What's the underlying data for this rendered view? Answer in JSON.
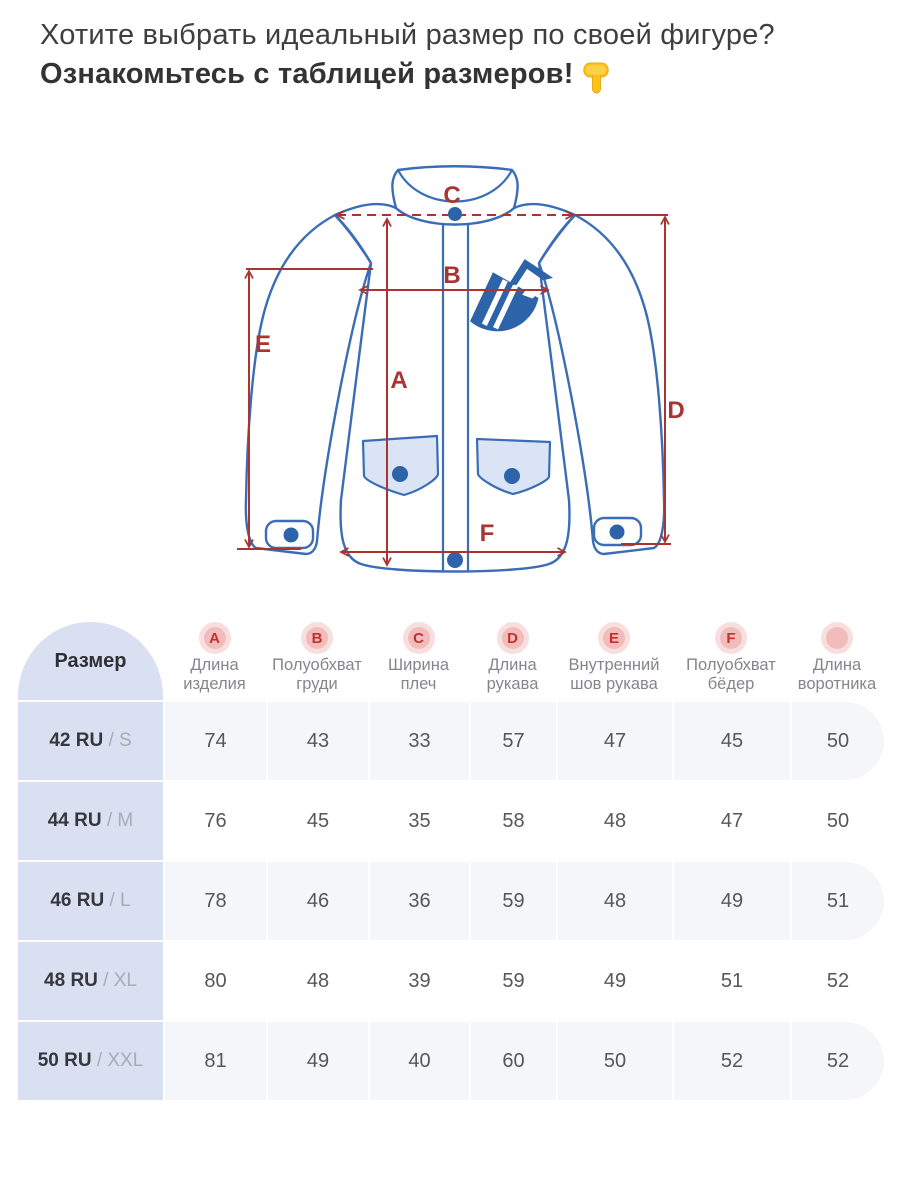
{
  "header": {
    "line1": "Хотите выбрать идеальный размер по своей фигуре?",
    "line2": "Ознакомьтесь с таблицей размеров!",
    "pointer_icon": "pointing-down-hand"
  },
  "diagram": {
    "description": "jacket measurement scheme",
    "marks": {
      "A": "A",
      "B": "B",
      "C": "C",
      "D": "D",
      "E": "E",
      "F": "F"
    }
  },
  "table": {
    "size_header": "Размер",
    "columns": [
      {
        "letter": "A",
        "label": "Длина изделия"
      },
      {
        "letter": "B",
        "label": "Полуобхват груди"
      },
      {
        "letter": "C",
        "label": "Ширина плеч"
      },
      {
        "letter": "D",
        "label": "Длина рукава"
      },
      {
        "letter": "E",
        "label": "Внутренний шов рукава"
      },
      {
        "letter": "F",
        "label": "Полуобхват бёдер"
      },
      {
        "letter": "",
        "label": "Длина воротника"
      }
    ],
    "rows": [
      {
        "size_ru": "42 RU",
        "size_int": "S",
        "values": [
          74,
          43,
          33,
          57,
          47,
          45,
          50
        ]
      },
      {
        "size_ru": "44 RU",
        "size_int": "M",
        "values": [
          76,
          45,
          35,
          58,
          48,
          47,
          50
        ]
      },
      {
        "size_ru": "46 RU",
        "size_int": "L",
        "values": [
          78,
          46,
          36,
          59,
          48,
          49,
          51
        ]
      },
      {
        "size_ru": "48 RU",
        "size_int": "XL",
        "values": [
          80,
          48,
          39,
          59,
          49,
          51,
          52
        ]
      },
      {
        "size_ru": "50 RU",
        "size_int": "XXL",
        "values": [
          81,
          49,
          40,
          60,
          50,
          52,
          52
        ]
      }
    ]
  },
  "colors": {
    "measurement_red": "#a93431",
    "jacket_blue": "#3a6db5",
    "logo_blue": "#2d63a9",
    "pocket_fill": "#dbe4f4",
    "size_column_bg": "#d8e0f1",
    "shaded_row_bg": "#f5f6fa",
    "badge_bg": "#f0bcbc",
    "badge_halo": "#f9dede",
    "badge_letter": "#c4312d",
    "hand_yellow": "#fcc21b"
  }
}
